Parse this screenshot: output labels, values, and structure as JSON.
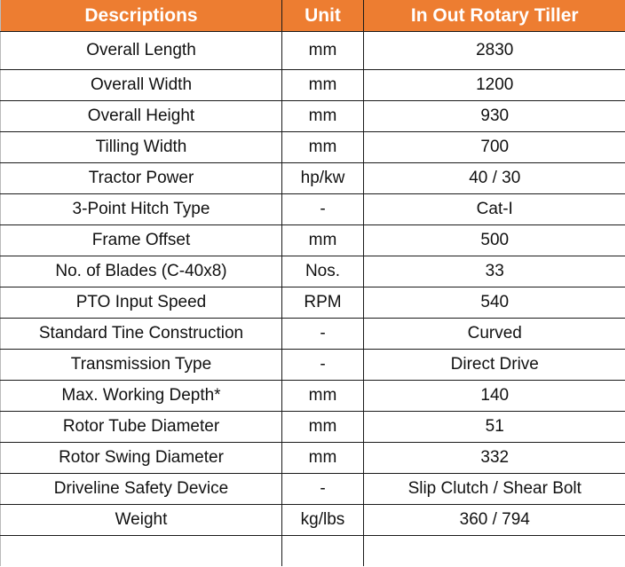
{
  "header": {
    "col1": "Descriptions",
    "col2": "Unit",
    "col3": "In Out Rotary Tiller"
  },
  "colors": {
    "header_bg": "#ED7D31",
    "header_text": "#FFFFFF"
  },
  "rows": [
    {
      "desc": "Overall Length",
      "unit": "mm",
      "value": "2830"
    },
    {
      "desc": "Overall Width",
      "unit": "mm",
      "value": "1200"
    },
    {
      "desc": "Overall Height",
      "unit": "mm",
      "value": "930"
    },
    {
      "desc": "Tilling Width",
      "unit": "mm",
      "value": "700"
    },
    {
      "desc": "Tractor Power",
      "unit": "hp/kw",
      "value": "40 / 30"
    },
    {
      "desc": "3-Point Hitch Type",
      "unit": "-",
      "value": "Cat-I"
    },
    {
      "desc": "Frame Offset",
      "unit": "mm",
      "value": "500"
    },
    {
      "desc": "No. of Blades (C-40x8)",
      "unit": "Nos.",
      "value": "33"
    },
    {
      "desc": "PTO Input Speed",
      "unit": "RPM",
      "value": "540"
    },
    {
      "desc": "Standard Tine Construction",
      "unit": "-",
      "value": "Curved"
    },
    {
      "desc": "Transmission Type",
      "unit": "-",
      "value": "Direct Drive"
    },
    {
      "desc": "Max. Working Depth*",
      "unit": "mm",
      "value": "140"
    },
    {
      "desc": "Rotor Tube Diameter",
      "unit": "mm",
      "value": "51"
    },
    {
      "desc": "Rotor Swing Diameter",
      "unit": "mm",
      "value": "332"
    },
    {
      "desc": "Driveline Safety Device",
      "unit": "-",
      "value": "Slip Clutch / Shear Bolt"
    },
    {
      "desc": "Weight",
      "unit": "kg/lbs",
      "value": "360 / 794"
    }
  ]
}
